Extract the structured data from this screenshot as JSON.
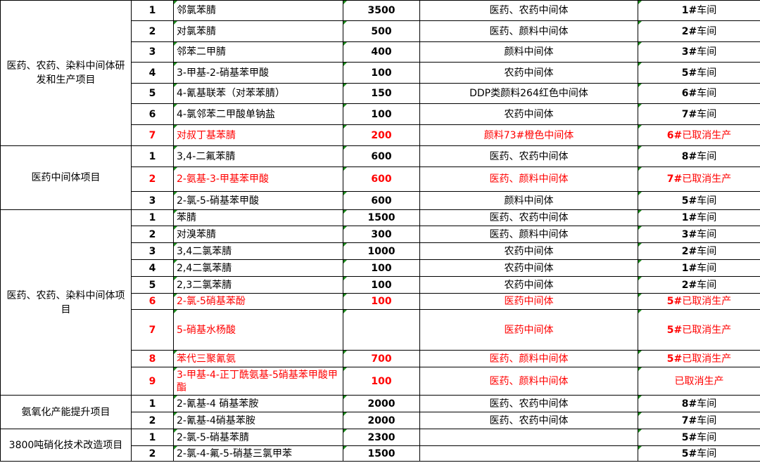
{
  "groups": [
    {
      "label": "医药、农药、染料中间体研发和生产项目",
      "rows": [
        {
          "no": "1",
          "name": "邻氯苯腈",
          "qty": "3500",
          "use": "医药、农药中间体",
          "ws_bold": "1#",
          "ws_rest": "车间",
          "red": false
        },
        {
          "no": "2",
          "name": "对氯苯腈",
          "qty": "500",
          "use": "医药、颜料中间体",
          "ws_bold": "2#",
          "ws_rest": "车间",
          "red": false
        },
        {
          "no": "3",
          "name": "邻苯二甲腈",
          "qty": "400",
          "use": "颜料中间体",
          "ws_bold": "3#",
          "ws_rest": "车间",
          "red": false
        },
        {
          "no": "4",
          "name": "3-甲基-2-硝基苯甲酸",
          "qty": "100",
          "use": "农药中间体",
          "ws_bold": "5#",
          "ws_rest": "车间",
          "red": false
        },
        {
          "no": "5",
          "name": "4-氰基联苯（对苯苯腈）",
          "qty": "150",
          "use": "DDP类颜料264红色中间体",
          "ws_bold": "6#",
          "ws_rest": "车间",
          "red": false
        },
        {
          "no": "6",
          "name": "4-氯邻苯二甲酸单钠盐",
          "qty": "100",
          "use": "农药中间体",
          "ws_bold": "7#",
          "ws_rest": "车间",
          "red": false
        },
        {
          "no": "7",
          "name": "对叔丁基苯腈",
          "qty": "200",
          "use": "颜料73#橙色中间体",
          "ws_bold": "6#",
          "ws_rest": "已取消生产",
          "red": true
        }
      ]
    },
    {
      "label": "医药中间体项目",
      "rows": [
        {
          "no": "1",
          "name": "3,4-二氟苯腈",
          "qty": "600",
          "use": "医药、农药中间体",
          "ws_bold": "8#",
          "ws_rest": "车间",
          "red": false
        },
        {
          "no": "2",
          "name": "2-氨基-3-甲基苯甲酸",
          "qty": "600",
          "use": "医药、颜料中间体",
          "ws_bold": "7#",
          "ws_rest": "已取消生产",
          "red": true
        },
        {
          "no": "3",
          "name": "2-氯-5-硝基苯甲酸",
          "qty": "600",
          "use": "颜料中间体",
          "ws_bold": "5#",
          "ws_rest": "车间",
          "red": false
        }
      ]
    },
    {
      "label": "医药、农药、染料中间体项目",
      "rows": [
        {
          "no": "1",
          "name": "苯腈",
          "qty": "1500",
          "use": "医药、农药中间体",
          "ws_bold": "1#",
          "ws_rest": "车间",
          "red": false
        },
        {
          "no": "2",
          "name": "对溴苯腈",
          "qty": "300",
          "use": "医药、颜料中间体",
          "ws_bold": "3#",
          "ws_rest": "车间",
          "red": false
        },
        {
          "no": "3",
          "name": "3,4二氯苯腈",
          "qty": "1000",
          "use": "农药中间体",
          "ws_bold": "2#",
          "ws_rest": "车间",
          "red": false
        },
        {
          "no": "4",
          "name": "2,4二氯苯腈",
          "qty": "100",
          "use": "农药中间体",
          "ws_bold": "1#",
          "ws_rest": "车间",
          "red": false
        },
        {
          "no": "5",
          "name": "2,3二氯苯腈",
          "qty": "100",
          "use": "农药中间体",
          "ws_bold": "2#",
          "ws_rest": "车间",
          "red": false
        },
        {
          "no": "6",
          "name": "2-氯-5硝基苯酚",
          "qty": "100",
          "use": "医药中间体",
          "ws_bold": "5#",
          "ws_rest": "已取消生产",
          "red": true
        },
        {
          "no": "7",
          "name": "5-硝基水杨酸",
          "qty": "",
          "use": "医药中间体",
          "ws_bold": "5#",
          "ws_rest": "已取消生产",
          "red": true
        },
        {
          "no": "8",
          "name": "苯代三聚氰氨",
          "qty": "700",
          "use": "医药、颜料中间体",
          "ws_bold": "5#",
          "ws_rest": "已取消生产",
          "red": true
        },
        {
          "no": "9",
          "name": "3-甲基-4-正丁酰氨基-5硝基苯甲酸甲酯",
          "qty": "100",
          "use": "医药、颜料中间体",
          "ws_bold": "",
          "ws_rest": "已取消生产",
          "red": true
        }
      ]
    },
    {
      "label": "氨氧化产能提升项目",
      "rows": [
        {
          "no": "1",
          "name": "2-氰基-4 硝基苯胺",
          "qty": "2000",
          "use": "医药、农药中间体",
          "ws_bold": "8#",
          "ws_rest": "车间",
          "red": false
        },
        {
          "no": "2",
          "name": "2-氰基-4硝基苯胺",
          "qty": "2000",
          "use": "医药、农药中间体",
          "ws_bold": "7#",
          "ws_rest": "车间",
          "red": false
        }
      ]
    },
    {
      "label": "3800吨硝化技术改造项目",
      "rows": [
        {
          "no": "1",
          "name": "2-氯-5-硝基苯腈",
          "qty": "2300",
          "use": "",
          "ws_bold": "5#",
          "ws_rest": "车间",
          "red": false
        },
        {
          "no": "2",
          "name": "2-氯-4-氟-5-硝基三氯甲苯",
          "qty": "1500",
          "use": "",
          "ws_bold": "5#",
          "ws_rest": "车间",
          "red": false
        }
      ]
    }
  ]
}
